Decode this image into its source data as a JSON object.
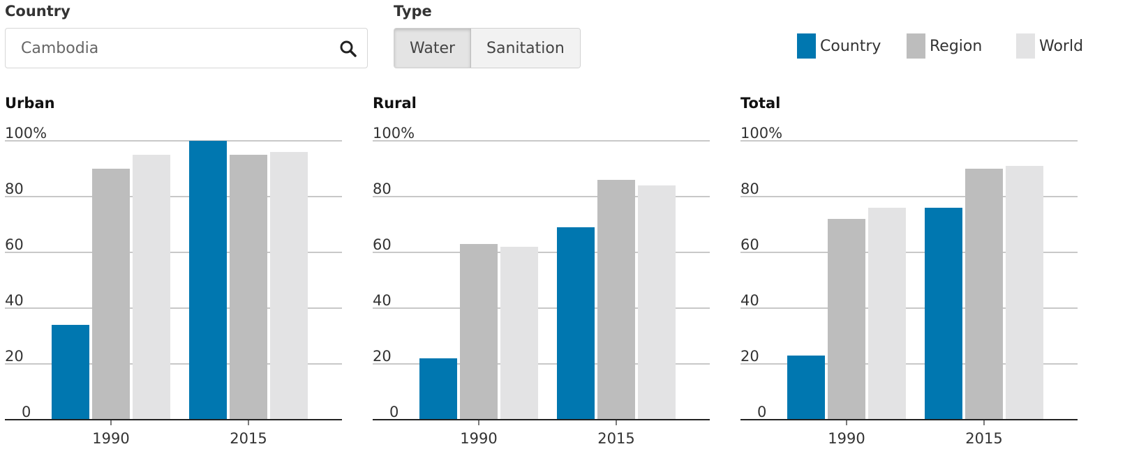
{
  "controls": {
    "country_label": "Country",
    "country_value": "Cambodia",
    "type_label": "Type",
    "type_options": [
      "Water",
      "Sanitation"
    ],
    "type_selected": "Water"
  },
  "icons": {
    "search": "search-icon"
  },
  "legend": [
    {
      "label": "Country",
      "color": "#0077b0"
    },
    {
      "label": "Region",
      "color": "#bdbdbd"
    },
    {
      "label": "World",
      "color": "#e3e3e4"
    }
  ],
  "chart_data": [
    {
      "type": "bar",
      "title": "Urban",
      "categories": [
        "1990",
        "2015"
      ],
      "series": [
        {
          "name": "Country",
          "values": [
            34,
            100
          ]
        },
        {
          "name": "Region",
          "values": [
            90,
            95
          ]
        },
        {
          "name": "World",
          "values": [
            95,
            96
          ]
        }
      ],
      "yticks": [
        "0",
        "20",
        "40",
        "60",
        "80",
        "100%"
      ],
      "ylim": [
        0,
        100
      ],
      "grid": true
    },
    {
      "type": "bar",
      "title": "Rural",
      "categories": [
        "1990",
        "2015"
      ],
      "series": [
        {
          "name": "Country",
          "values": [
            22,
            69
          ]
        },
        {
          "name": "Region",
          "values": [
            63,
            86
          ]
        },
        {
          "name": "World",
          "values": [
            62,
            84
          ]
        }
      ],
      "yticks": [
        "0",
        "20",
        "40",
        "60",
        "80",
        "100%"
      ],
      "ylim": [
        0,
        100
      ],
      "grid": true
    },
    {
      "type": "bar",
      "title": "Total",
      "categories": [
        "1990",
        "2015"
      ],
      "series": [
        {
          "name": "Country",
          "values": [
            23,
            76
          ]
        },
        {
          "name": "Region",
          "values": [
            72,
            90
          ]
        },
        {
          "name": "World",
          "values": [
            76,
            91
          ]
        }
      ],
      "yticks": [
        "0",
        "20",
        "40",
        "60",
        "80",
        "100%"
      ],
      "ylim": [
        0,
        100
      ],
      "grid": true
    }
  ]
}
